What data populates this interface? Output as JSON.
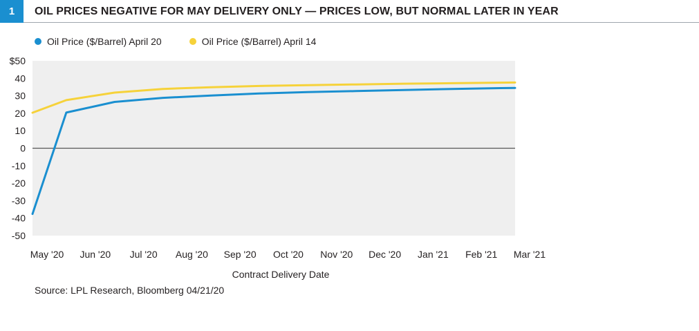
{
  "header": {
    "badge": "1",
    "title": "OIL PRICES NEGATIVE FOR MAY DELIVERY ONLY — PRICES LOW, BUT NORMAL LATER IN YEAR"
  },
  "legend": [
    {
      "label": "Oil Price ($/Barrel) April 20",
      "color": "#1a8fd0"
    },
    {
      "label": "Oil Price ($/Barrel) April 14",
      "color": "#f6d23a"
    }
  ],
  "source": "Source: LPL Research, Bloomberg   04/21/20",
  "chart_data": {
    "type": "line",
    "xlabel": "Contract Delivery Date",
    "categories": [
      "May '20",
      "Jun '20",
      "Jul '20",
      "Aug '20",
      "Sep '20",
      "Oct '20",
      "Nov '20",
      "Dec '20",
      "Jan '21",
      "Feb '21",
      "Mar '21"
    ],
    "y_ticks": [
      "$50",
      "40",
      "30",
      "20",
      "10",
      "0",
      "-10",
      "-20",
      "-30",
      "-40",
      "-50"
    ],
    "ylim": [
      -50,
      50
    ],
    "series": [
      {
        "name": "Oil Price ($/Barrel) April 14",
        "color": "#f6d23a",
        "x": [
          0,
          0.7,
          1.7,
          2.7,
          3.7,
          4.7,
          5.7,
          6.7,
          7.7,
          8.7,
          9.7,
          10
        ],
        "values": [
          20.3,
          27.5,
          31.8,
          33.9,
          34.9,
          35.6,
          36.1,
          36.5,
          36.9,
          37.2,
          37.5,
          37.6
        ]
      },
      {
        "name": "Oil Price ($/Barrel) April 20",
        "color": "#1a8fd0",
        "x": [
          0,
          0.7,
          1.7,
          2.7,
          3.7,
          4.7,
          5.7,
          6.7,
          7.7,
          8.7,
          9.7,
          10
        ],
        "values": [
          -37.6,
          20.4,
          26.5,
          28.8,
          30.1,
          31.3,
          32.1,
          32.7,
          33.3,
          33.9,
          34.4,
          34.5
        ]
      }
    ]
  }
}
